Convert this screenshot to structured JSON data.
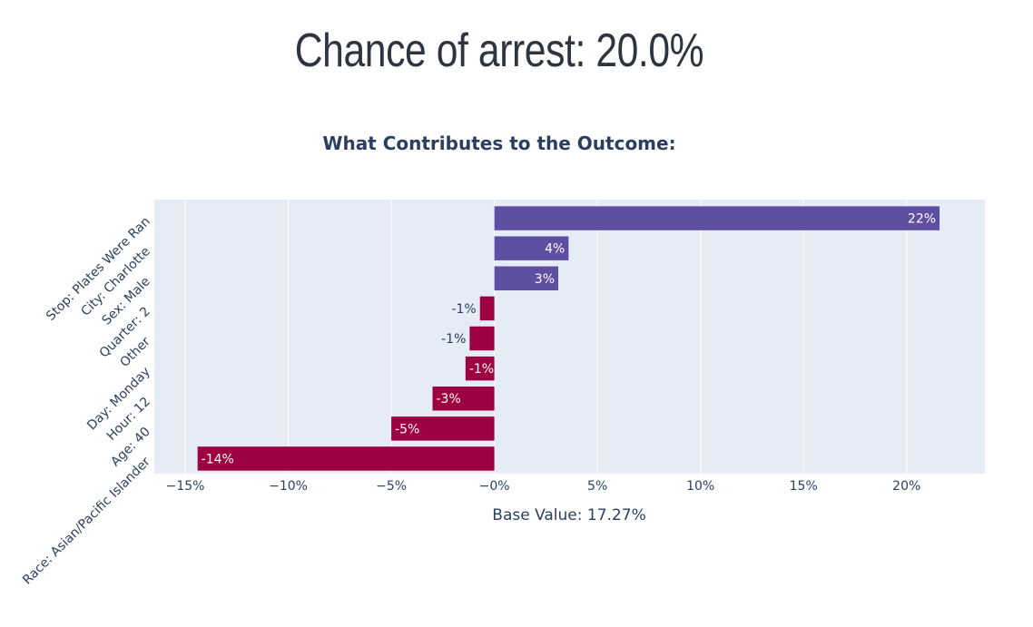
{
  "page": {
    "title": "Chance of arrest: 20.0%"
  },
  "chart_data": {
    "type": "bar",
    "orientation": "horizontal",
    "title": "What Contributes to the Outcome:",
    "xlabel": "Base Value: 17.27%",
    "ylabel": "",
    "categories": [
      "Stop: Plates Were Ran",
      "City: Charlotte",
      "Sex: Male",
      "Quarter: 2",
      "Other",
      "Day: Monday",
      "Hour: 12",
      "Age: 40",
      "Race: Asian/Pacific Islander"
    ],
    "values": [
      21.6,
      3.6,
      3.1,
      -0.7,
      -1.2,
      -1.4,
      -3.0,
      -5.0,
      -14.4
    ],
    "data_labels": [
      "22%",
      "4%",
      "3%",
      "-1%",
      "-1%",
      "-1%",
      "-3%",
      "-5%",
      "-14%"
    ],
    "xlim": [
      -16.5,
      23.8
    ],
    "xticks": [
      -15,
      -10,
      -5,
      0,
      5,
      10,
      15,
      20
    ],
    "xtick_labels": [
      "−15%",
      "−10%",
      "−5%",
      "−0%",
      "5%",
      "10%",
      "15%",
      "20%"
    ],
    "grid": true,
    "legend": "none",
    "colors": {
      "positive": "#5e4fa2",
      "negative": "#9e0142",
      "plot_background": "#e5ecf6",
      "grid": "#ffffff",
      "text": "#2a3f5f"
    }
  }
}
